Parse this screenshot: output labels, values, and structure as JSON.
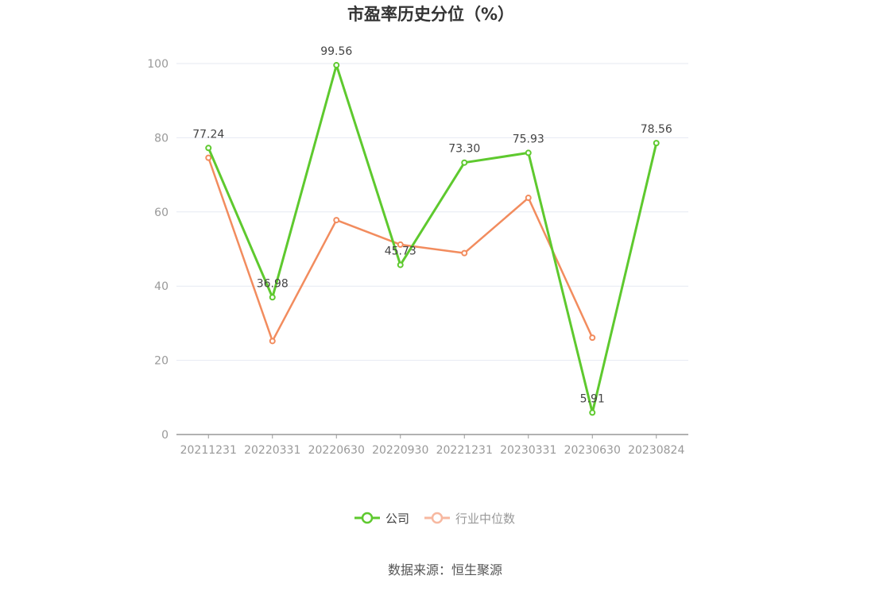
{
  "chart_data": {
    "type": "line",
    "title": "市盈率历史分位（%）",
    "categories": [
      "20211231",
      "20220331",
      "20220630",
      "20220930",
      "20221231",
      "20230331",
      "20230630",
      "20230824"
    ],
    "series": [
      {
        "name": "公司",
        "color": "#5ec92e",
        "values": [
          77.24,
          36.98,
          99.56,
          45.73,
          73.3,
          75.93,
          5.91,
          78.56
        ],
        "labels": [
          "77.24",
          "36.98",
          "99.56",
          "45.73",
          "73.30",
          "75.93",
          "5.91",
          "78.56"
        ]
      },
      {
        "name": "行业中位数",
        "color": "#f28c5e",
        "values": [
          74.6,
          25.2,
          57.8,
          51.2,
          48.9,
          63.8,
          26.1,
          null
        ]
      }
    ],
    "ylim": [
      0,
      100
    ],
    "yticks": [
      0,
      20,
      40,
      60,
      80,
      100
    ],
    "grid": true,
    "legend_position": "bottom-center"
  },
  "footer": {
    "source": "数据来源：恒生聚源"
  }
}
